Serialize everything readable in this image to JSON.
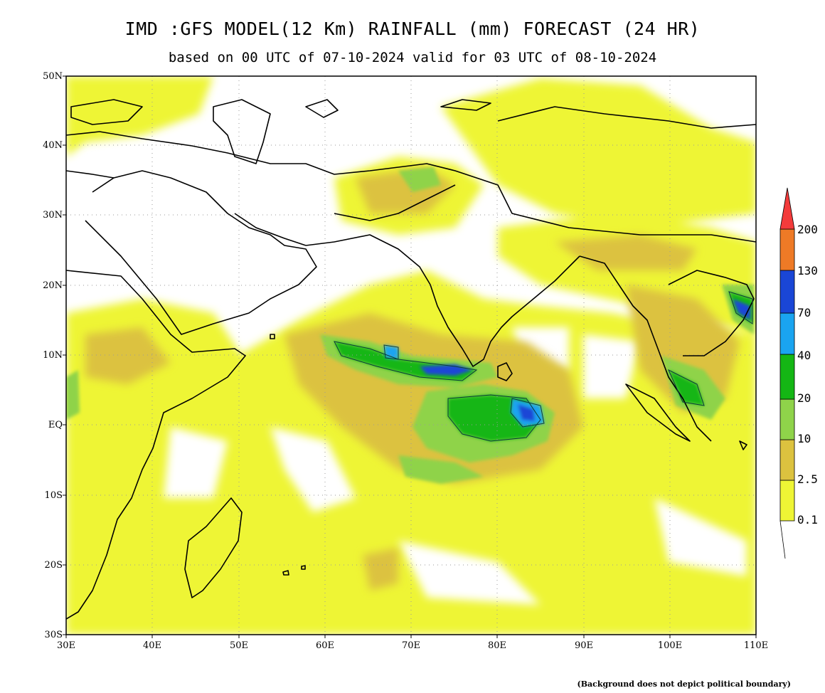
{
  "header": {
    "title": "IMD :GFS MODEL(12 Km) RAINFALL (mm) FORECAST (24 HR)",
    "subtitle": "based on 00 UTC of 07-10-2024 valid for 03 UTC of 08-10-2024"
  },
  "map": {
    "region": "Indian Ocean and South Asia",
    "lon_range": [
      30,
      110
    ],
    "lat_range": [
      -30,
      50
    ],
    "lat_labels": [
      "50N",
      "40N",
      "30N",
      "20N",
      "10N",
      "EQ",
      "10S",
      "20S",
      "30S"
    ],
    "lon_labels": [
      "30E",
      "40E",
      "50E",
      "60E",
      "70E",
      "80E",
      "90E",
      "100E",
      "110E"
    ],
    "grid": "dotted"
  },
  "legend": {
    "unit": "mm",
    "labels": [
      "0.1",
      "2.5",
      "10",
      "20",
      "40",
      "70",
      "130",
      "200"
    ],
    "colors": [
      "#eef535",
      "#dcc23f",
      "#8fd34a",
      "#14b614",
      "#1aa4f0",
      "#1a46d6",
      "#ee7a26",
      "#f33b3b"
    ]
  },
  "footnote": "(Background does not depict political boundary)"
}
